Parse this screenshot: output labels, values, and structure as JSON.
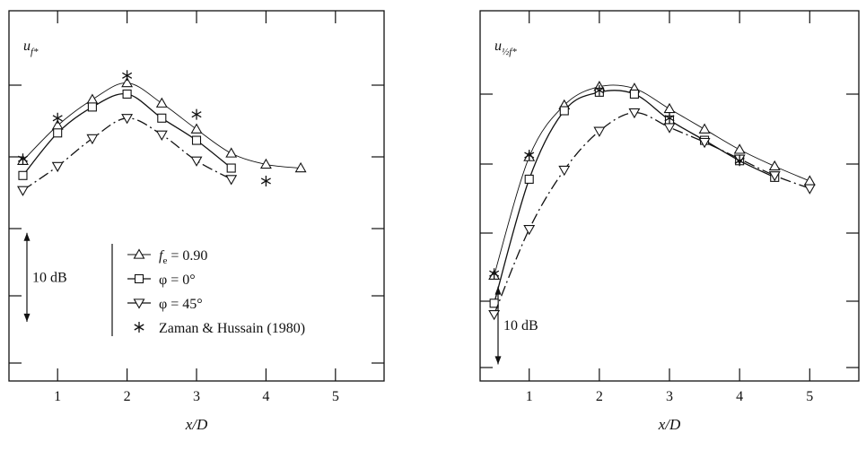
{
  "chart_data": [
    {
      "type": "line",
      "ylabel_main": "u",
      "ylabel_sub": "f*",
      "xlabel": "x/D",
      "xlim": [
        0.3,
        5.7
      ],
      "ylim": [
        0,
        10
      ],
      "y_units": "scale: 10 dB",
      "x_ticks": [
        1,
        2,
        3,
        4,
        5
      ],
      "x_tick_labels": [
        "1",
        "2",
        "3",
        "4",
        "5"
      ],
      "scale_bar_label": "10 dB",
      "scale_bar_range": [
        1.6,
        4.0
      ],
      "legend": {
        "position": "bottom-center",
        "entries": [
          {
            "marker": "triangle-up",
            "label": "f",
            "sub": "e",
            "suffix": " = 0.90"
          },
          {
            "marker": "square",
            "label": "φ = 0°",
            "sub": "",
            "suffix": ""
          },
          {
            "marker": "triangle-down",
            "label": "φ = 45°",
            "sub": "",
            "suffix": ""
          },
          {
            "marker": "star",
            "label": "Zaman & Hussain (1980)",
            "sub": "",
            "suffix": ""
          }
        ]
      },
      "series": [
        {
          "marker": "triangle-up",
          "line": "thin",
          "x": [
            0.5,
            1.0,
            1.5,
            2.0,
            2.5,
            3.0,
            3.5,
            4.0,
            4.5
          ],
          "y": [
            5.95,
            6.9,
            7.6,
            8.05,
            7.5,
            6.8,
            6.15,
            5.85,
            5.75
          ]
        },
        {
          "marker": "square",
          "line": "solid",
          "x": [
            0.5,
            1.0,
            1.5,
            2.0,
            2.5,
            3.0,
            3.5
          ],
          "y": [
            5.55,
            6.7,
            7.4,
            7.75,
            7.1,
            6.5,
            5.75
          ]
        },
        {
          "marker": "triangle-down",
          "line": "dash-dot",
          "x": [
            0.5,
            1.0,
            1.5,
            2.0,
            2.5,
            3.0,
            3.5
          ],
          "y": [
            5.15,
            5.8,
            6.55,
            7.1,
            6.65,
            5.95,
            5.45
          ]
        },
        {
          "marker": "star",
          "line": "none",
          "x": [
            0.5,
            1.0,
            2.0,
            3.0,
            4.0
          ],
          "y": [
            6.0,
            7.1,
            8.25,
            7.2,
            5.4
          ]
        }
      ]
    },
    {
      "type": "line",
      "ylabel_main": "u",
      "ylabel_sub": "½f*",
      "xlabel": "x/D",
      "xlim": [
        0.3,
        5.7
      ],
      "ylim": [
        0,
        10
      ],
      "y_units": "scale: 10 dB",
      "x_ticks": [
        1,
        2,
        3,
        4,
        5
      ],
      "x_tick_labels": [
        "1",
        "2",
        "3",
        "4",
        "5"
      ],
      "scale_bar_label": "10 dB",
      "scale_bar_range": [
        0.45,
        2.55
      ],
      "series": [
        {
          "marker": "triangle-up",
          "line": "thin",
          "x": [
            0.5,
            1.0,
            1.5,
            2.0,
            2.5,
            3.0,
            3.5,
            4.0,
            4.5,
            5.0
          ],
          "y": [
            2.85,
            6.05,
            7.45,
            7.95,
            7.9,
            7.35,
            6.8,
            6.25,
            5.8,
            5.4
          ]
        },
        {
          "marker": "square",
          "line": "solid",
          "x": [
            0.5,
            1.0,
            1.5,
            2.0,
            2.5,
            3.0,
            3.5,
            4.0,
            4.5
          ],
          "y": [
            2.1,
            5.45,
            7.3,
            7.8,
            7.75,
            7.05,
            6.5,
            5.95,
            5.5
          ]
        },
        {
          "marker": "triangle-down",
          "line": "dash-dot",
          "x": [
            0.5,
            1.0,
            1.5,
            2.0,
            2.5,
            3.0,
            3.5,
            4.0,
            4.5,
            5.0
          ],
          "y": [
            1.8,
            4.1,
            5.7,
            6.75,
            7.25,
            6.85,
            6.45,
            6.0,
            5.55,
            5.2
          ]
        },
        {
          "marker": "star",
          "line": "none",
          "x": [
            0.5,
            1.0,
            2.0,
            3.0,
            4.0
          ],
          "y": [
            2.9,
            6.1,
            7.85,
            7.1,
            5.95
          ]
        }
      ]
    }
  ]
}
